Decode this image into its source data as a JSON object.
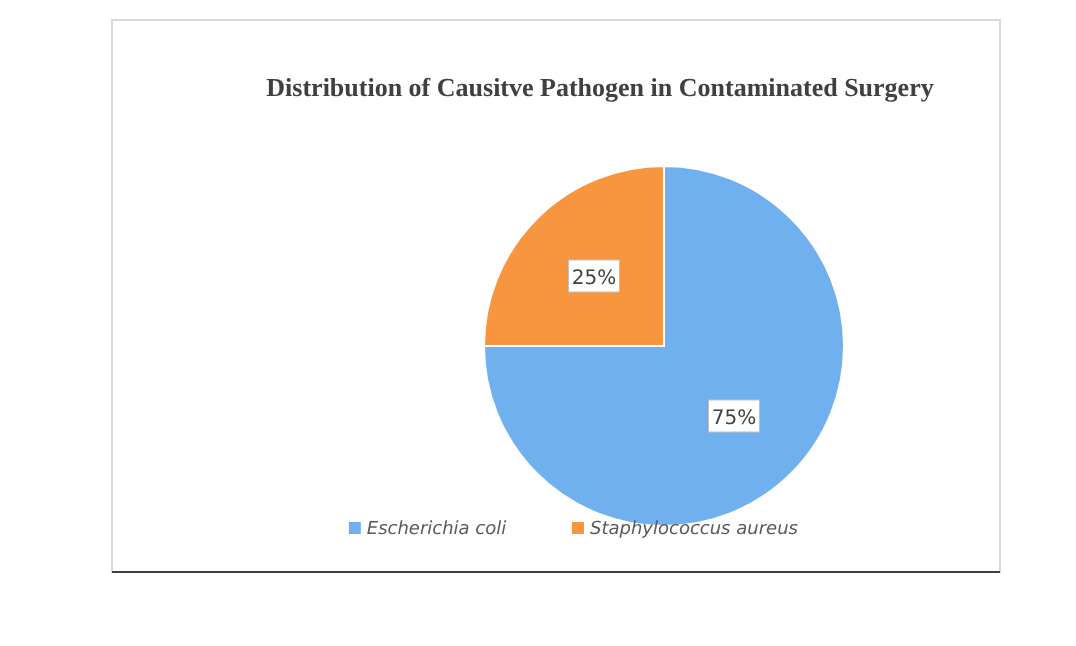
{
  "chart_data": {
    "type": "pie",
    "title": "Distribution of Causitve Pathogen in Contaminated Surgery",
    "categories": [
      "Escherichia coli",
      "Staphylococcus aureus"
    ],
    "values": [
      75,
      25
    ],
    "colors": [
      "#70b0ee",
      "#f89640"
    ],
    "value_labels": [
      "75%",
      "25%"
    ],
    "legend": "bottom"
  }
}
